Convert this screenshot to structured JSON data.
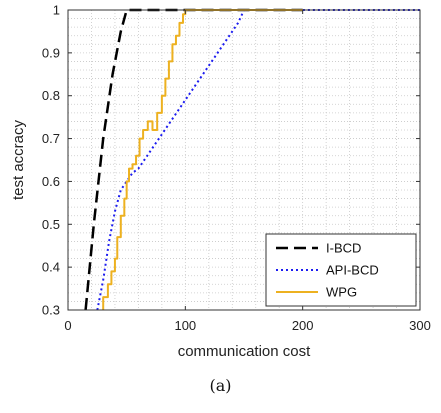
{
  "chart_data": {
    "type": "line",
    "xlabel": "communication cost",
    "ylabel": "test accracy",
    "xlim": [
      0,
      300
    ],
    "ylim": [
      0.3,
      1
    ],
    "xticks": [
      0,
      100,
      200,
      300
    ],
    "yticks": [
      0.3,
      0.4,
      0.5,
      0.6,
      0.7,
      0.8,
      0.9,
      1
    ],
    "grid": "dotted-minor",
    "legend_position": "bottom-right",
    "series": [
      {
        "name": "I-BCD",
        "color": "#000000",
        "style": "dashed",
        "x": [
          15,
          22,
          30,
          38,
          45,
          50,
          200
        ],
        "y": [
          0.3,
          0.5,
          0.7,
          0.85,
          0.95,
          1.0,
          1.0
        ]
      },
      {
        "name": "API-BCD",
        "color": "#1c1cf0",
        "style": "dotted",
        "x": [
          25,
          30,
          35,
          40,
          45,
          50,
          55,
          60,
          65,
          70,
          75,
          80,
          85,
          90,
          95,
          100,
          105,
          110,
          115,
          120,
          125,
          130,
          135,
          140,
          145,
          150,
          300
        ],
        "y": [
          0.3,
          0.37,
          0.46,
          0.53,
          0.58,
          0.6,
          0.62,
          0.63,
          0.65,
          0.67,
          0.69,
          0.71,
          0.73,
          0.75,
          0.77,
          0.79,
          0.81,
          0.83,
          0.85,
          0.87,
          0.89,
          0.91,
          0.93,
          0.95,
          0.97,
          1.0,
          1.0
        ]
      },
      {
        "name": "WPG",
        "color": "#edb120",
        "style": "solid",
        "x": [
          30,
          30,
          34,
          34,
          37,
          37,
          40,
          40,
          42,
          42,
          45,
          45,
          48,
          48,
          50,
          50,
          52,
          52,
          55,
          55,
          58,
          58,
          61,
          61,
          64,
          64,
          68,
          68,
          72,
          72,
          76,
          76,
          80,
          80,
          83,
          83,
          86,
          86,
          89,
          89,
          92,
          92,
          95,
          95,
          98,
          98,
          100,
          100,
          103,
          103,
          106,
          106,
          200
        ],
        "y": [
          0.3,
          0.33,
          0.33,
          0.36,
          0.36,
          0.39,
          0.39,
          0.42,
          0.42,
          0.47,
          0.47,
          0.52,
          0.52,
          0.56,
          0.56,
          0.6,
          0.6,
          0.63,
          0.63,
          0.64,
          0.64,
          0.66,
          0.66,
          0.7,
          0.7,
          0.72,
          0.72,
          0.74,
          0.74,
          0.72,
          0.72,
          0.76,
          0.76,
          0.8,
          0.8,
          0.84,
          0.84,
          0.88,
          0.88,
          0.92,
          0.92,
          0.94,
          0.94,
          0.97,
          0.97,
          0.99,
          0.99,
          1.0,
          1.0,
          1.0,
          1.0,
          1.0,
          1.0
        ]
      }
    ]
  },
  "caption": "(a)"
}
